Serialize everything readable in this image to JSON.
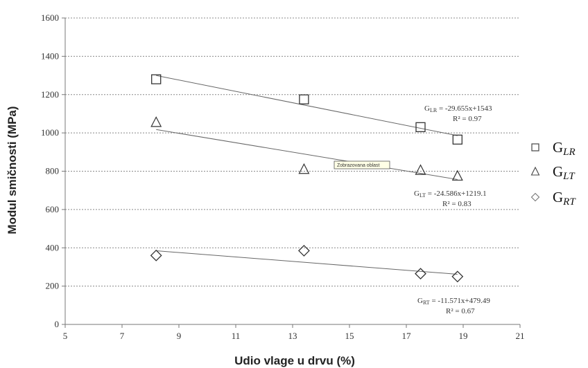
{
  "chart_data": {
    "type": "scatter",
    "xlabel": "Udio vlage u drvu (%)",
    "ylabel": "Modul smičnosti (MPa)",
    "xlim": [
      5,
      21
    ],
    "ylim": [
      0,
      1600
    ],
    "xticks": [
      "5",
      "7",
      "9",
      "11",
      "13",
      "15",
      "17",
      "19",
      "21"
    ],
    "yticks": [
      "0",
      "200",
      "400",
      "600",
      "800",
      "1000",
      "1200",
      "1400",
      "1600"
    ],
    "grid": "horizontal dotted",
    "legend_position": "right",
    "series": [
      {
        "name": "GLR",
        "label_main": "G",
        "label_sub": "LR",
        "marker": "square",
        "x": [
          8.2,
          13.4,
          17.5,
          18.8
        ],
        "y": [
          1280,
          1175,
          1030,
          965
        ],
        "trendline": {
          "slope": -29.655,
          "intercept": 1543
        },
        "equation": {
          "prefix": "G",
          "sub": "LR",
          "formula": " = -29.655x+1543",
          "r2": "R² = 0.97"
        }
      },
      {
        "name": "GLT",
        "label_main": "G",
        "label_sub": "LT",
        "marker": "triangle",
        "x": [
          8.2,
          13.4,
          17.5,
          18.8
        ],
        "y": [
          1055,
          810,
          805,
          775
        ],
        "trendline": {
          "slope": -24.586,
          "intercept": 1219.1
        },
        "equation": {
          "prefix": "G",
          "sub": "LT",
          "formula": " = -24.586x+1219.1",
          "r2": "R² = 0.83"
        }
      },
      {
        "name": "GRT",
        "label_main": "G",
        "label_sub": "RT",
        "marker": "diamond",
        "x": [
          8.2,
          13.4,
          17.5,
          18.8
        ],
        "y": [
          360,
          385,
          265,
          250
        ],
        "trendline": {
          "slope": -11.571,
          "intercept": 479.49
        },
        "equation": {
          "prefix": "G",
          "sub": "RT",
          "formula": " = -11.571x+479.49",
          "r2": "R² = 0.67"
        }
      }
    ],
    "tooltip": "Zobrazovana oblast"
  }
}
